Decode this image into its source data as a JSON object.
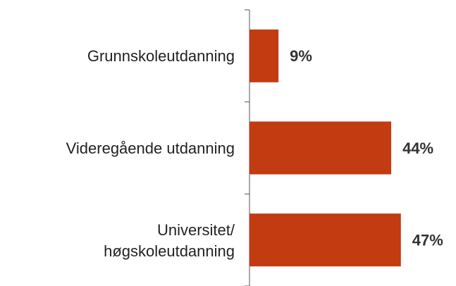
{
  "chart_data": {
    "type": "bar",
    "orientation": "horizontal",
    "categories": [
      "Grunnskoleutdanning",
      "Videregående utdanning",
      "Universitet/\nhøgskoleutdanning"
    ],
    "values": [
      9,
      44,
      47
    ],
    "value_labels": [
      "9%",
      "44%",
      "47%"
    ],
    "color": "#c33b11"
  }
}
